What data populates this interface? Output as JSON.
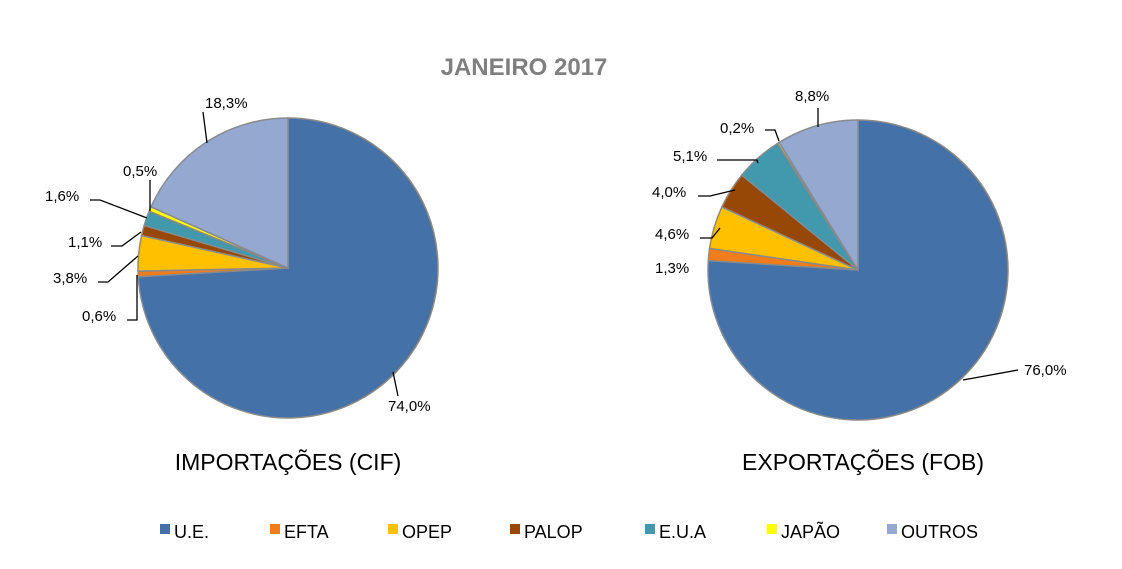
{
  "chart_data": [
    {
      "type": "pie",
      "title": "JANEIRO 2017",
      "subtitle": "IMPORTAÇÕES (CIF)",
      "categories": [
        "U.E.",
        "EFTA",
        "OPEP",
        "PALOP",
        "E.U.A",
        "JAPÃO",
        "OUTROS"
      ],
      "values": [
        74.0,
        0.6,
        3.8,
        1.1,
        1.6,
        0.5,
        18.3
      ],
      "labels": [
        "74,0%",
        "0,6%",
        "3,8%",
        "1,1%",
        "1,6%",
        "0,5%",
        "18,3%"
      ],
      "start": "12 o'clock",
      "direction": "clockwise"
    },
    {
      "type": "pie",
      "subtitle": "EXPORTAÇÕES (FOB)",
      "categories": [
        "U.E.",
        "EFTA",
        "OPEP",
        "PALOP",
        "E.U.A",
        "JAPÃO",
        "OUTROS"
      ],
      "values": [
        76.0,
        1.3,
        4.6,
        4.0,
        5.1,
        0.2,
        8.8
      ],
      "labels": [
        "76,0%",
        "1,3%",
        "4,6%",
        "4,0%",
        "5,1%",
        "0,2%",
        "8,8%"
      ],
      "start": "12 o'clock",
      "direction": "clockwise"
    }
  ],
  "legend": {
    "placement": "bottom",
    "items": [
      "U.E.",
      "EFTA",
      "OPEP",
      "PALOP",
      "E.U.A",
      "JAPÃO",
      "OUTROS"
    ]
  },
  "colors": [
    "#4472a8",
    "#f07d1a",
    "#ffc000",
    "#974706",
    "#4298ac",
    "#ffff00",
    "#94a8d0"
  ]
}
